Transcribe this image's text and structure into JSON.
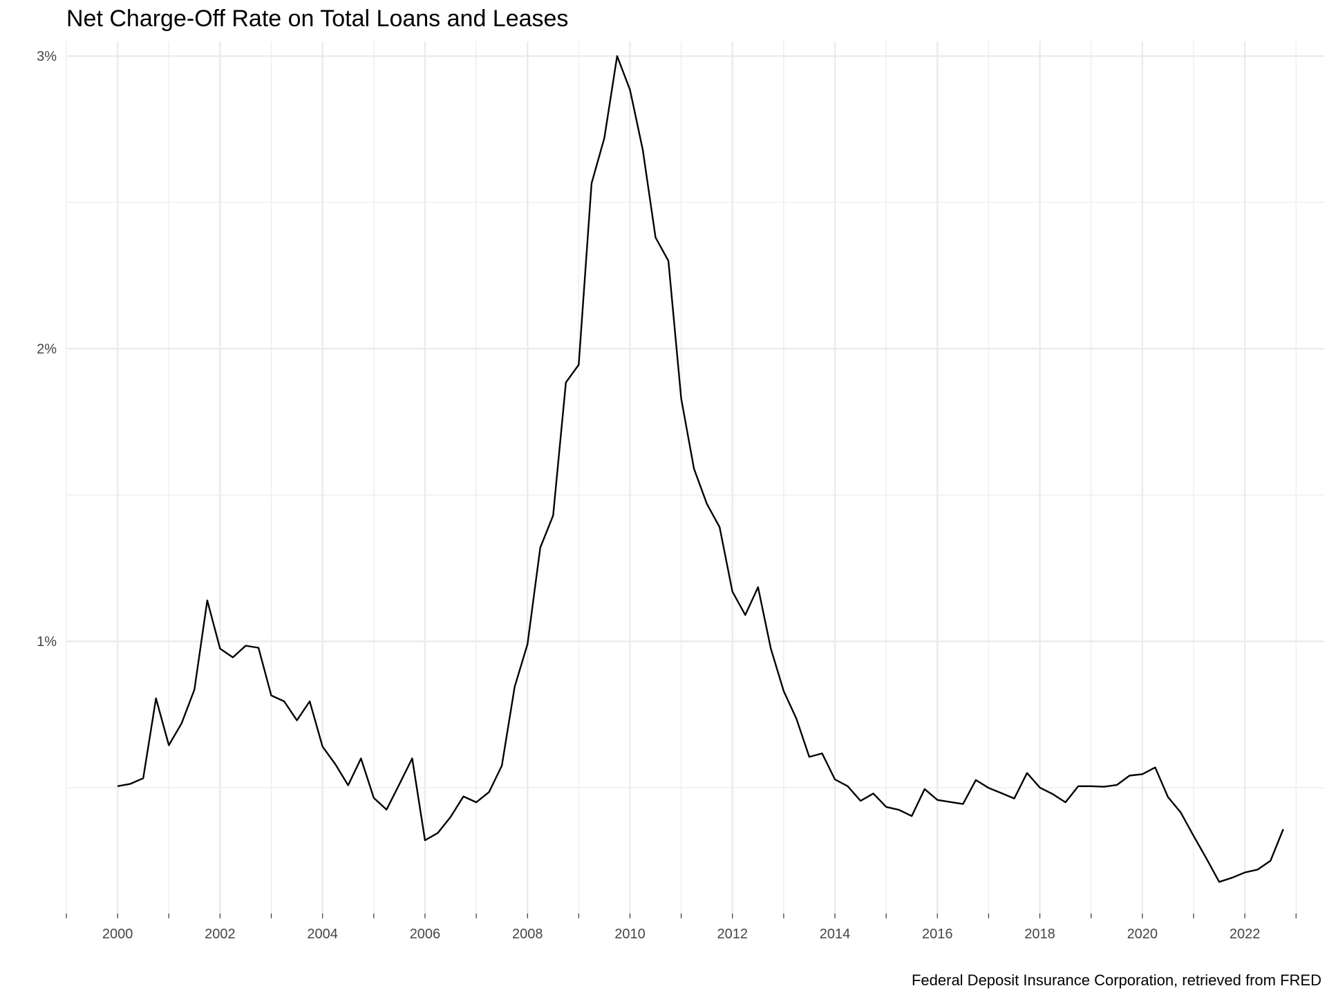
{
  "chart_data": {
    "type": "line",
    "title": "Net Charge-Off Rate on Total Loans and Leases",
    "caption": "Federal Deposit Insurance Corporation, retrieved from FRED",
    "xlabel": "",
    "ylabel": "",
    "xlim": [
      1999.0,
      2023.55
    ],
    "ylim": [
      0.07,
      3.05
    ],
    "x_ticks": [
      2000,
      2002,
      2004,
      2006,
      2008,
      2010,
      2012,
      2014,
      2016,
      2018,
      2020,
      2022
    ],
    "x_tick_labels": [
      "2000",
      "2002",
      "2004",
      "2006",
      "2008",
      "2010",
      "2012",
      "2014",
      "2016",
      "2018",
      "2020",
      "2022"
    ],
    "x_minor_ticks": [
      1999,
      2001,
      2003,
      2005,
      2007,
      2009,
      2011,
      2013,
      2015,
      2017,
      2019,
      2021,
      2023
    ],
    "y_ticks": [
      1,
      2,
      3
    ],
    "y_tick_labels": [
      "1%",
      "2%",
      "3%"
    ],
    "y_minor_ticks": [
      0.5,
      1.5,
      2.5
    ],
    "grid": true,
    "line_color": "#000000",
    "grid_color": "#ebebeb",
    "series": [
      {
        "x": [
          2000.0,
          2000.25,
          2000.5,
          2000.75,
          2001.0,
          2001.25,
          2001.5,
          2001.75,
          2002.0,
          2002.25,
          2002.5,
          2002.75,
          2003.0,
          2003.25,
          2003.5,
          2003.75,
          2004.0,
          2004.25,
          2004.5,
          2004.75,
          2005.0,
          2005.25,
          2005.5,
          2005.75,
          2006.0,
          2006.25,
          2006.5,
          2006.75,
          2007.0,
          2007.25,
          2007.5,
          2007.75,
          2008.0,
          2008.25,
          2008.5,
          2008.75,
          2009.0,
          2009.25,
          2009.5,
          2009.75,
          2010.0,
          2010.25,
          2010.5,
          2010.75,
          2011.0,
          2011.25,
          2011.5,
          2011.75,
          2012.0,
          2012.25,
          2012.5,
          2012.75,
          2013.0,
          2013.25,
          2013.5,
          2013.75,
          2014.0,
          2014.25,
          2014.5,
          2014.75,
          2015.0,
          2015.25,
          2015.5,
          2015.75,
          2016.0,
          2016.25,
          2016.5,
          2016.75,
          2017.0,
          2017.25,
          2017.5,
          2017.75,
          2018.0,
          2018.25,
          2018.5,
          2018.75,
          2019.0,
          2019.25,
          2019.5,
          2019.75,
          2020.0,
          2020.25,
          2020.5,
          2020.75,
          2021.0,
          2021.25,
          2021.5,
          2021.75,
          2022.0,
          2022.25,
          2022.5,
          2022.75
        ],
        "values": [
          0.505,
          0.513,
          0.532,
          0.805,
          0.645,
          0.72,
          0.835,
          1.14,
          0.975,
          0.945,
          0.985,
          0.978,
          0.815,
          0.795,
          0.73,
          0.795,
          0.64,
          0.58,
          0.508,
          0.6,
          0.465,
          0.425,
          0.512,
          0.6,
          0.32,
          0.345,
          0.4,
          0.47,
          0.45,
          0.485,
          0.575,
          0.845,
          0.99,
          1.32,
          1.43,
          1.885,
          1.945,
          2.565,
          2.72,
          3.0,
          2.885,
          2.68,
          2.38,
          2.3,
          1.83,
          1.59,
          1.47,
          1.39,
          1.17,
          1.09,
          1.185,
          0.975,
          0.83,
          0.735,
          0.605,
          0.617,
          0.528,
          0.505,
          0.455,
          0.48,
          0.434,
          0.424,
          0.403,
          0.495,
          0.458,
          0.451,
          0.444,
          0.526,
          0.499,
          0.481,
          0.463,
          0.55,
          0.5,
          0.478,
          0.45,
          0.505,
          0.505,
          0.503,
          0.509,
          0.541,
          0.546,
          0.569,
          0.468,
          0.415,
          0.335,
          0.258,
          0.178,
          0.192,
          0.21,
          0.22,
          0.25,
          0.358
        ]
      }
    ]
  }
}
